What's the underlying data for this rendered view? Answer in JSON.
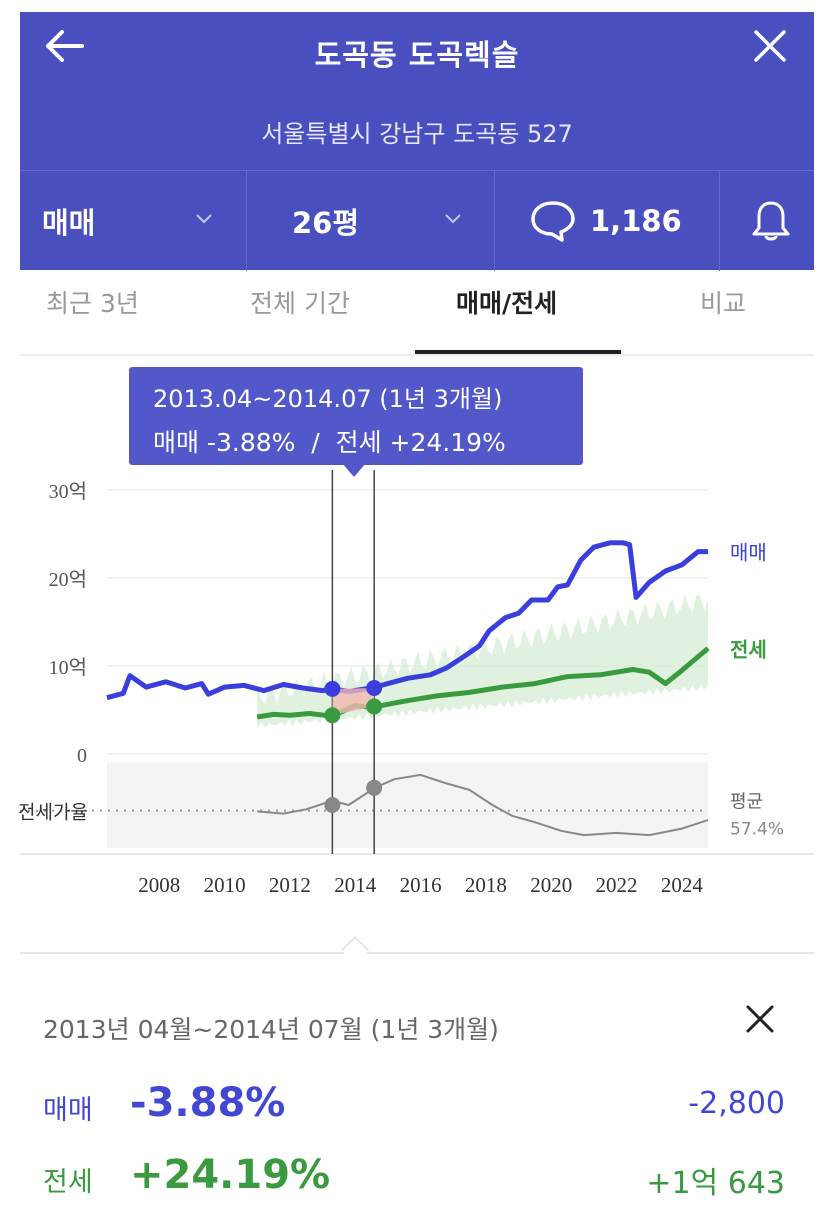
{
  "header": {
    "title": "도곡동 도곡렉슬",
    "address": "서울특별시 강남구 도곡동 527",
    "trade_type": "매매",
    "area": "26평",
    "comment_count": "1,186"
  },
  "tabs": [
    {
      "label": "최근 3년",
      "active": false
    },
    {
      "label": "전체 기간",
      "active": false
    },
    {
      "label": "매매/전세",
      "active": true
    },
    {
      "label": "비교",
      "active": false
    }
  ],
  "tooltip": {
    "range": "2013.04~2014.07 (1년 3개월)",
    "summary": "매매 -3.88%  /  전세 +24.19%"
  },
  "chart_data": {
    "type": "line",
    "y_ticks": [
      "30억",
      "20억",
      "10억",
      "0"
    ],
    "x_ticks": [
      "2008",
      "2010",
      "2012",
      "2014",
      "2016",
      "2018",
      "2020",
      "2022",
      "2024"
    ],
    "ylim": [
      0,
      30
    ],
    "series": [
      {
        "name": "매매",
        "color": "#3a3fdb",
        "x": [
          2006.4,
          2006.9,
          2007.1,
          2007.6,
          2008.2,
          2008.8,
          2009.3,
          2009.5,
          2010.0,
          2010.6,
          2011.2,
          2011.8,
          2012.4,
          2013.0,
          2013.3,
          2013.8,
          2014.5,
          2015.0,
          2015.6,
          2016.3,
          2016.8,
          2017.3,
          2017.8,
          2018.1,
          2018.6,
          2019.0,
          2019.4,
          2019.9,
          2020.2,
          2020.5,
          2020.9,
          2021.3,
          2021.8,
          2022.2,
          2022.4,
          2022.6,
          2023.0,
          2023.5,
          2024.0,
          2024.5,
          2024.8
        ],
        "values": [
          6.4,
          6.9,
          8.9,
          7.6,
          8.2,
          7.5,
          8.0,
          6.8,
          7.6,
          7.8,
          7.2,
          7.9,
          7.5,
          7.2,
          7.4,
          7.1,
          7.5,
          8.0,
          8.6,
          9.0,
          9.8,
          11.0,
          12.3,
          14.0,
          15.5,
          16.0,
          17.5,
          17.5,
          19.0,
          19.2,
          22.0,
          23.5,
          24.0,
          24.0,
          23.8,
          17.8,
          19.5,
          20.8,
          21.5,
          23.0,
          23.0
        ]
      },
      {
        "name": "전세",
        "color": "#3a9a3f",
        "x": [
          2011.0,
          2011.5,
          2012.0,
          2012.6,
          2013.3,
          2014.0,
          2014.5,
          2015.5,
          2016.5,
          2017.5,
          2018.5,
          2019.5,
          2020.5,
          2021.5,
          2022.5,
          2023.0,
          2023.5,
          2024.0,
          2024.8
        ],
        "values": [
          4.2,
          4.5,
          4.4,
          4.6,
          4.3,
          5.5,
          5.3,
          6.0,
          6.6,
          7.0,
          7.6,
          8.0,
          8.8,
          9.0,
          9.6,
          9.3,
          8.0,
          9.5,
          12.0
        ]
      },
      {
        "name": "전세가율",
        "color": "#888888",
        "x": [
          2011.0,
          2011.8,
          2012.5,
          2013.3,
          2013.8,
          2014.6,
          2015.2,
          2016.0,
          2016.8,
          2017.5,
          2018.2,
          2018.8,
          2019.5,
          2020.3,
          2021.0,
          2022.0,
          2023.0,
          2024.0,
          2024.8
        ],
        "values": [
          57,
          56,
          58,
          62,
          60,
          68,
          72,
          74,
          70,
          67,
          60,
          55,
          52,
          48,
          46,
          47,
          46,
          49,
          53
        ]
      }
    ],
    "series_labels": {
      "sale": "매매",
      "jeonse": "전세",
      "ratio": "전세가율"
    },
    "ratio_average_label": "평균",
    "ratio_average_value": "57.4%",
    "selection": {
      "start": 2013.3,
      "end": 2014.58
    }
  },
  "detail": {
    "period": "2013년 04월~2014년 07월 (1년 3개월)",
    "rows": [
      {
        "label": "매매",
        "pct": "-3.88%",
        "amount": "-2,800"
      },
      {
        "label": "전세",
        "pct": "+24.19%",
        "amount": "+1억 643"
      }
    ]
  },
  "colors": {
    "header": "#4a4fbf",
    "sale": "#3a3fdb",
    "jeonse": "#3a9a3f"
  }
}
